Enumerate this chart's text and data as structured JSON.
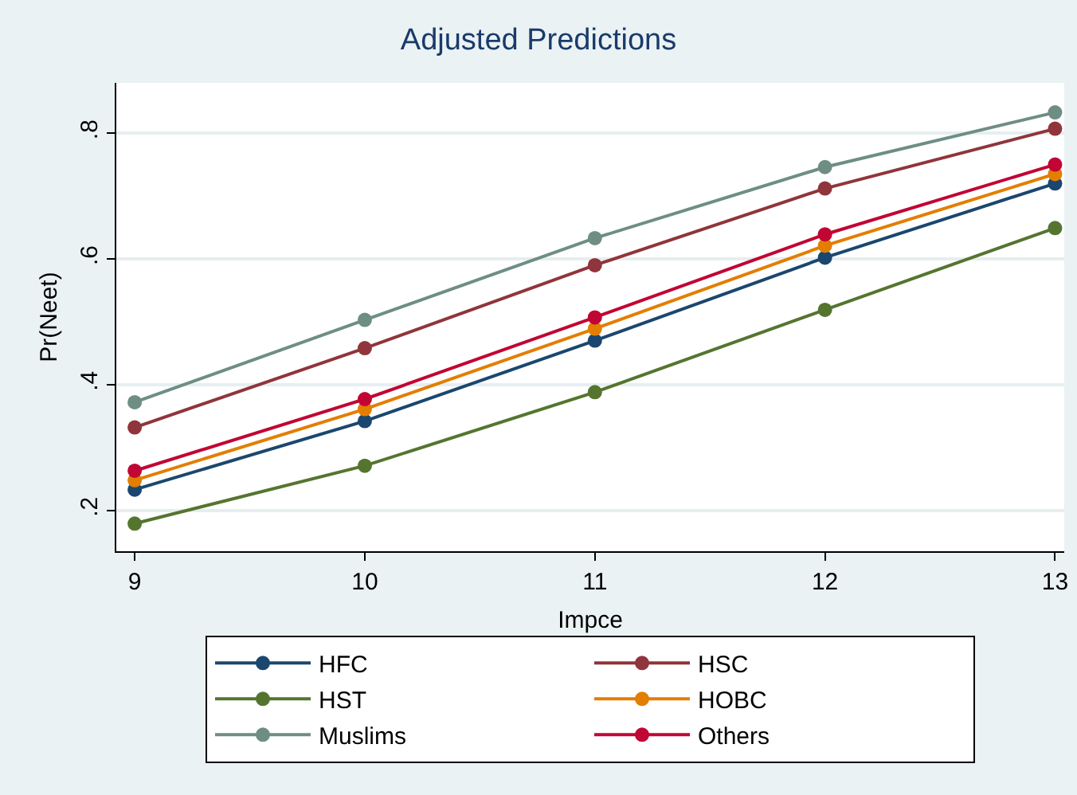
{
  "chart_data": {
    "type": "line",
    "title": "Adjusted Predictions",
    "xlabel": "Impce",
    "ylabel": "Pr(Neet)",
    "x": [
      9,
      10,
      11,
      12,
      13
    ],
    "xlim": [
      8.92,
      13.04
    ],
    "xticks": [
      9,
      10,
      11,
      12,
      13
    ],
    "ylim": [
      0.135,
      0.88
    ],
    "yticks": [
      {
        "value": 0.2,
        "label": ".2"
      },
      {
        "value": 0.4,
        "label": ".4"
      },
      {
        "value": 0.6,
        "label": ".6"
      },
      {
        "value": 0.8,
        "label": ".8"
      }
    ],
    "grid": "y",
    "legend": "bottom",
    "marker": "circle",
    "line_style": "solid",
    "series": [
      {
        "name": "HFC",
        "color": "#1a476f",
        "values": [
          0.233,
          0.342,
          0.47,
          0.602,
          0.72
        ]
      },
      {
        "name": "HSC",
        "color": "#90353b",
        "values": [
          0.332,
          0.458,
          0.59,
          0.712,
          0.807
        ]
      },
      {
        "name": "HST",
        "color": "#55752f",
        "values": [
          0.179,
          0.271,
          0.388,
          0.519,
          0.649
        ]
      },
      {
        "name": "HOBC",
        "color": "#e37e00",
        "values": [
          0.248,
          0.361,
          0.489,
          0.621,
          0.735
        ]
      },
      {
        "name": "Muslims",
        "color": "#6e8e84",
        "values": [
          0.372,
          0.503,
          0.633,
          0.746,
          0.833
        ]
      },
      {
        "name": "Others",
        "color": "#c10534",
        "values": [
          0.263,
          0.377,
          0.507,
          0.639,
          0.75
        ]
      }
    ]
  }
}
